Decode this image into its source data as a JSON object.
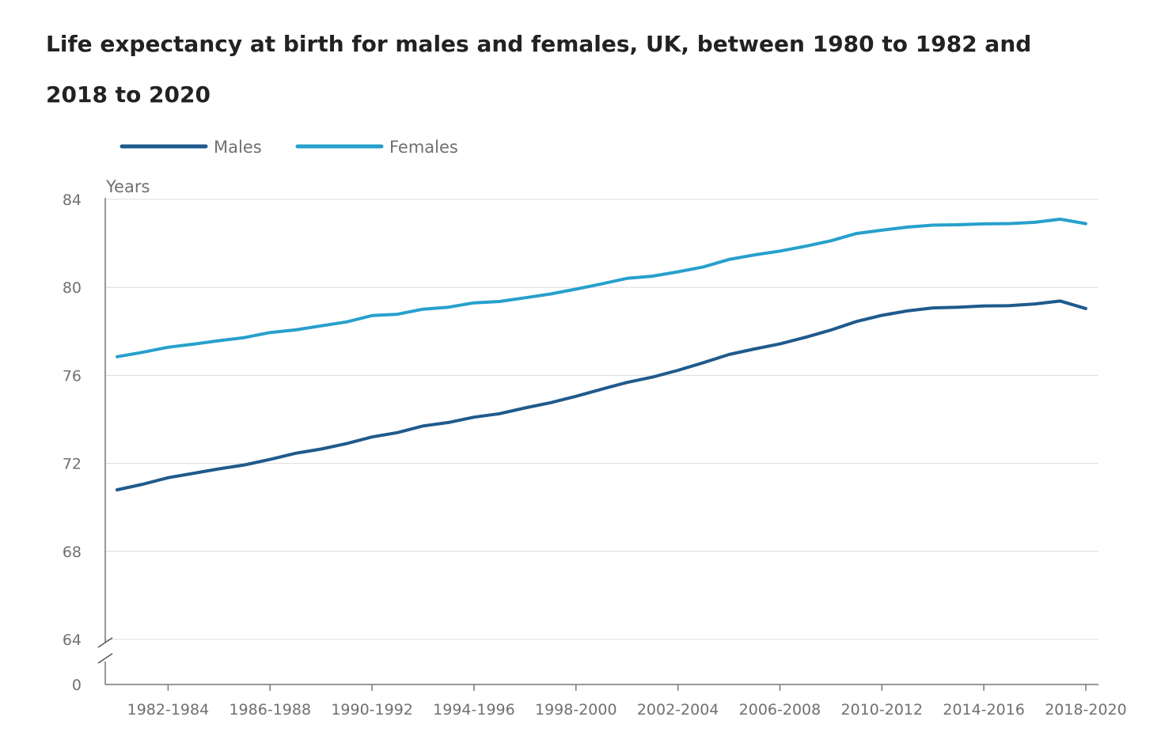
{
  "chart_data": {
    "type": "line",
    "title": "Life expectancy at birth for males and females, UK, between 1980 to 1982 and 2018 to 2020",
    "ylabel": "Years",
    "ylim": [
      64,
      84
    ],
    "y_ticks": [
      84,
      80,
      76,
      72,
      68,
      64
    ],
    "y_axis_break": true,
    "y_break_label": "0",
    "grid": true,
    "legend_position": "top-left",
    "x": [
      "1980-1982",
      "1981-1983",
      "1982-1984",
      "1983-1985",
      "1984-1986",
      "1985-1987",
      "1986-1988",
      "1987-1989",
      "1988-1990",
      "1989-1991",
      "1990-1992",
      "1991-1993",
      "1992-1994",
      "1993-1995",
      "1994-1996",
      "1995-1997",
      "1996-1998",
      "1997-1999",
      "1998-2000",
      "1999-2001",
      "2000-2002",
      "2001-2003",
      "2002-2004",
      "2003-2005",
      "2004-2006",
      "2005-2007",
      "2006-2008",
      "2007-2009",
      "2008-2010",
      "2009-2011",
      "2010-2012",
      "2011-2013",
      "2012-2014",
      "2013-2015",
      "2014-2016",
      "2015-2017",
      "2016-2018",
      "2017-2019",
      "2018-2020"
    ],
    "x_tick_labels": [
      "1982-1984",
      "1986-1988",
      "1990-1992",
      "1994-1996",
      "1998-2000",
      "2002-2004",
      "2006-2008",
      "2010-2012",
      "2014-2016",
      "2018-2020"
    ],
    "series": [
      {
        "name": "Males",
        "color": "#1f5a8c",
        "values": [
          70.8,
          71.05,
          71.35,
          71.55,
          71.75,
          71.93,
          72.18,
          72.46,
          72.65,
          72.9,
          73.2,
          73.4,
          73.7,
          73.86,
          74.1,
          74.26,
          74.52,
          74.76,
          75.05,
          75.37,
          75.68,
          75.92,
          76.23,
          76.58,
          76.95,
          77.2,
          77.43,
          77.73,
          78.06,
          78.45,
          78.73,
          78.93,
          79.07,
          79.1,
          79.16,
          79.17,
          79.25,
          79.38,
          79.04
        ]
      },
      {
        "name": "Females",
        "color": "#27a0cc",
        "values": [
          76.85,
          77.05,
          77.28,
          77.42,
          77.58,
          77.72,
          77.95,
          78.07,
          78.25,
          78.43,
          78.72,
          78.78,
          79.01,
          79.1,
          79.3,
          79.36,
          79.53,
          79.7,
          79.92,
          80.16,
          80.41,
          80.51,
          80.71,
          80.93,
          81.27,
          81.48,
          81.65,
          81.87,
          82.12,
          82.45,
          82.6,
          82.74,
          82.83,
          82.85,
          82.89,
          82.9,
          82.96,
          83.1,
          82.9
        ]
      }
    ]
  }
}
